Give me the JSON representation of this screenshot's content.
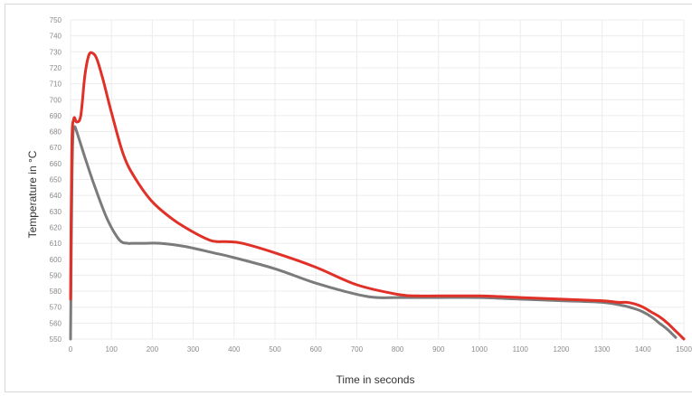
{
  "chart_data": {
    "type": "line",
    "title": "",
    "xlabel": "Time in seconds",
    "ylabel": "Temperature in °C",
    "xlim": [
      0,
      1500
    ],
    "ylim": [
      550,
      750
    ],
    "x_ticks": [
      "0",
      "100",
      "200",
      "300",
      "400",
      "500",
      "600",
      "700",
      "800",
      "900",
      "1000",
      "1100",
      "1200",
      "1300",
      "1400",
      "1500"
    ],
    "y_ticks": [
      "550",
      "560",
      "570",
      "580",
      "590",
      "600",
      "610",
      "620",
      "630",
      "640",
      "650",
      "660",
      "670",
      "680",
      "690",
      "700",
      "710",
      "720",
      "730",
      "740",
      "750"
    ],
    "grid": true,
    "legend": "none",
    "series": [
      {
        "color": "#e03027",
        "x": [
          0,
          3,
          8,
          15,
          25,
          35,
          45,
          55,
          65,
          80,
          100,
          130,
          160,
          200,
          250,
          300,
          340,
          360,
          380,
          420,
          500,
          600,
          700,
          800,
          850,
          900,
          1000,
          1100,
          1200,
          1300,
          1340,
          1360,
          1380,
          1400,
          1420,
          1440,
          1460,
          1480,
          1500
        ],
        "y": [
          575,
          670,
          688,
          686,
          690,
          715,
          728,
          729,
          725,
          712,
          692,
          665,
          650,
          636,
          625,
          617,
          612,
          611,
          611,
          610,
          604,
          595,
          584,
          578,
          577,
          577,
          577,
          576,
          575,
          574,
          573,
          573,
          572,
          570,
          567,
          564,
          560,
          555,
          550
        ]
      },
      {
        "color": "#7b7b7b",
        "x": [
          0,
          3,
          6,
          10,
          15,
          25,
          40,
          60,
          90,
          120,
          140,
          150,
          180,
          220,
          280,
          350,
          400,
          500,
          600,
          700,
          750,
          800,
          900,
          1000,
          1100,
          1200,
          1300,
          1350,
          1380,
          1400,
          1420,
          1440,
          1460,
          1480
        ],
        "y": [
          550,
          640,
          678,
          683,
          680,
          672,
          660,
          645,
          625,
          612,
          610,
          610,
          610,
          610,
          608,
          604,
          601,
          594,
          585,
          578,
          576,
          576,
          576,
          576,
          575,
          574,
          573,
          571,
          569,
          567,
          564,
          560,
          556,
          551
        ]
      }
    ]
  }
}
